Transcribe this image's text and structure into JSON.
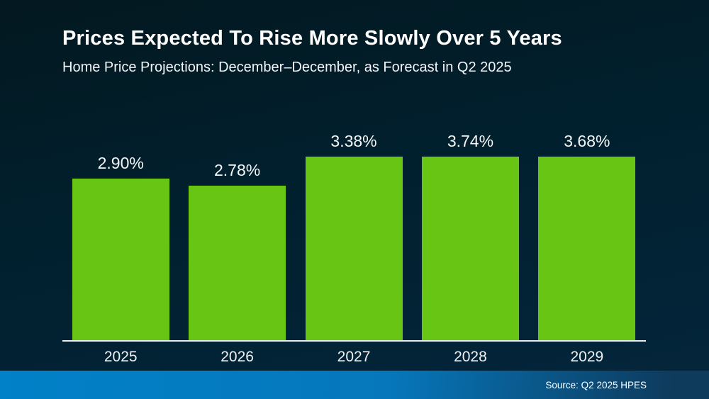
{
  "header": {
    "title": "Prices Expected To Rise More Slowly Over 5 Years",
    "subtitle": "Home Price Projections: December–December, as Forecast in Q2 2025"
  },
  "chart_data": {
    "type": "bar",
    "categories": [
      "2025",
      "2026",
      "2027",
      "2028",
      "2029"
    ],
    "values": [
      2.9,
      2.78,
      3.38,
      3.74,
      3.68
    ],
    "value_labels": [
      "2.90%",
      "2.78%",
      "3.38%",
      "3.74%",
      "3.68%"
    ],
    "title": "Prices Expected To Rise More Slowly Over 5 Years",
    "xlabel": "",
    "ylabel": "",
    "ylim": [
      0,
      3.74
    ],
    "grid": false,
    "legend": false,
    "bar_color": "#68c513"
  },
  "footer": {
    "source_label": "Source: Q2 2025 HPES"
  },
  "colors": {
    "background_top": "#031820",
    "background_mid": "#01202e",
    "background_bottom": "#04263c",
    "bar_green": "#68c513",
    "axis_line": "#e9edef",
    "footer_blue_left": "#0181c8",
    "footer_blue_mid": "#0677bb",
    "footer_blue_right": "#0e3a5c",
    "text_white": "#ffffff"
  }
}
